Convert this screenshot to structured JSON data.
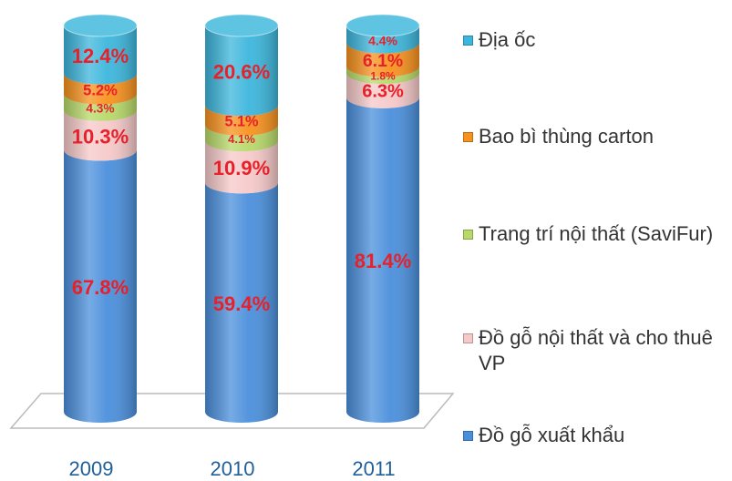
{
  "chart_data": {
    "type": "stacked-cylinder",
    "categories": [
      "2009",
      "2010",
      "2011"
    ],
    "series": [
      {
        "name": "Đồ gỗ xuất khẩu",
        "color": "#4a8fdc",
        "values": [
          67.8,
          59.4,
          81.4
        ],
        "value_labels": [
          "67.8%",
          "59.4%",
          "81.4%"
        ]
      },
      {
        "name": "Đồ gỗ nội thất và cho thuê VP",
        "color": "#f6c9c9",
        "values": [
          10.3,
          10.9,
          6.3
        ],
        "value_labels": [
          "10.3%",
          "10.9%",
          "6.3%"
        ]
      },
      {
        "name": "Trang trí nội thất (SaviFur)",
        "color": "#b7d96a",
        "values": [
          4.3,
          4.1,
          1.8
        ],
        "value_labels": [
          "4.3%",
          "4.1%",
          "1.8%"
        ]
      },
      {
        "name": "Bao bì thùng carton",
        "color": "#f7921e",
        "values": [
          5.2,
          5.1,
          6.1
        ],
        "value_labels": [
          "5.2%",
          "5.1%",
          "6.1%"
        ]
      },
      {
        "name": "Địa ốc",
        "color": "#3cb6dc",
        "values": [
          12.4,
          20.6,
          4.4
        ],
        "value_labels": [
          "12.4%",
          "20.6%",
          "4.4%"
        ]
      }
    ],
    "legend": "right"
  }
}
